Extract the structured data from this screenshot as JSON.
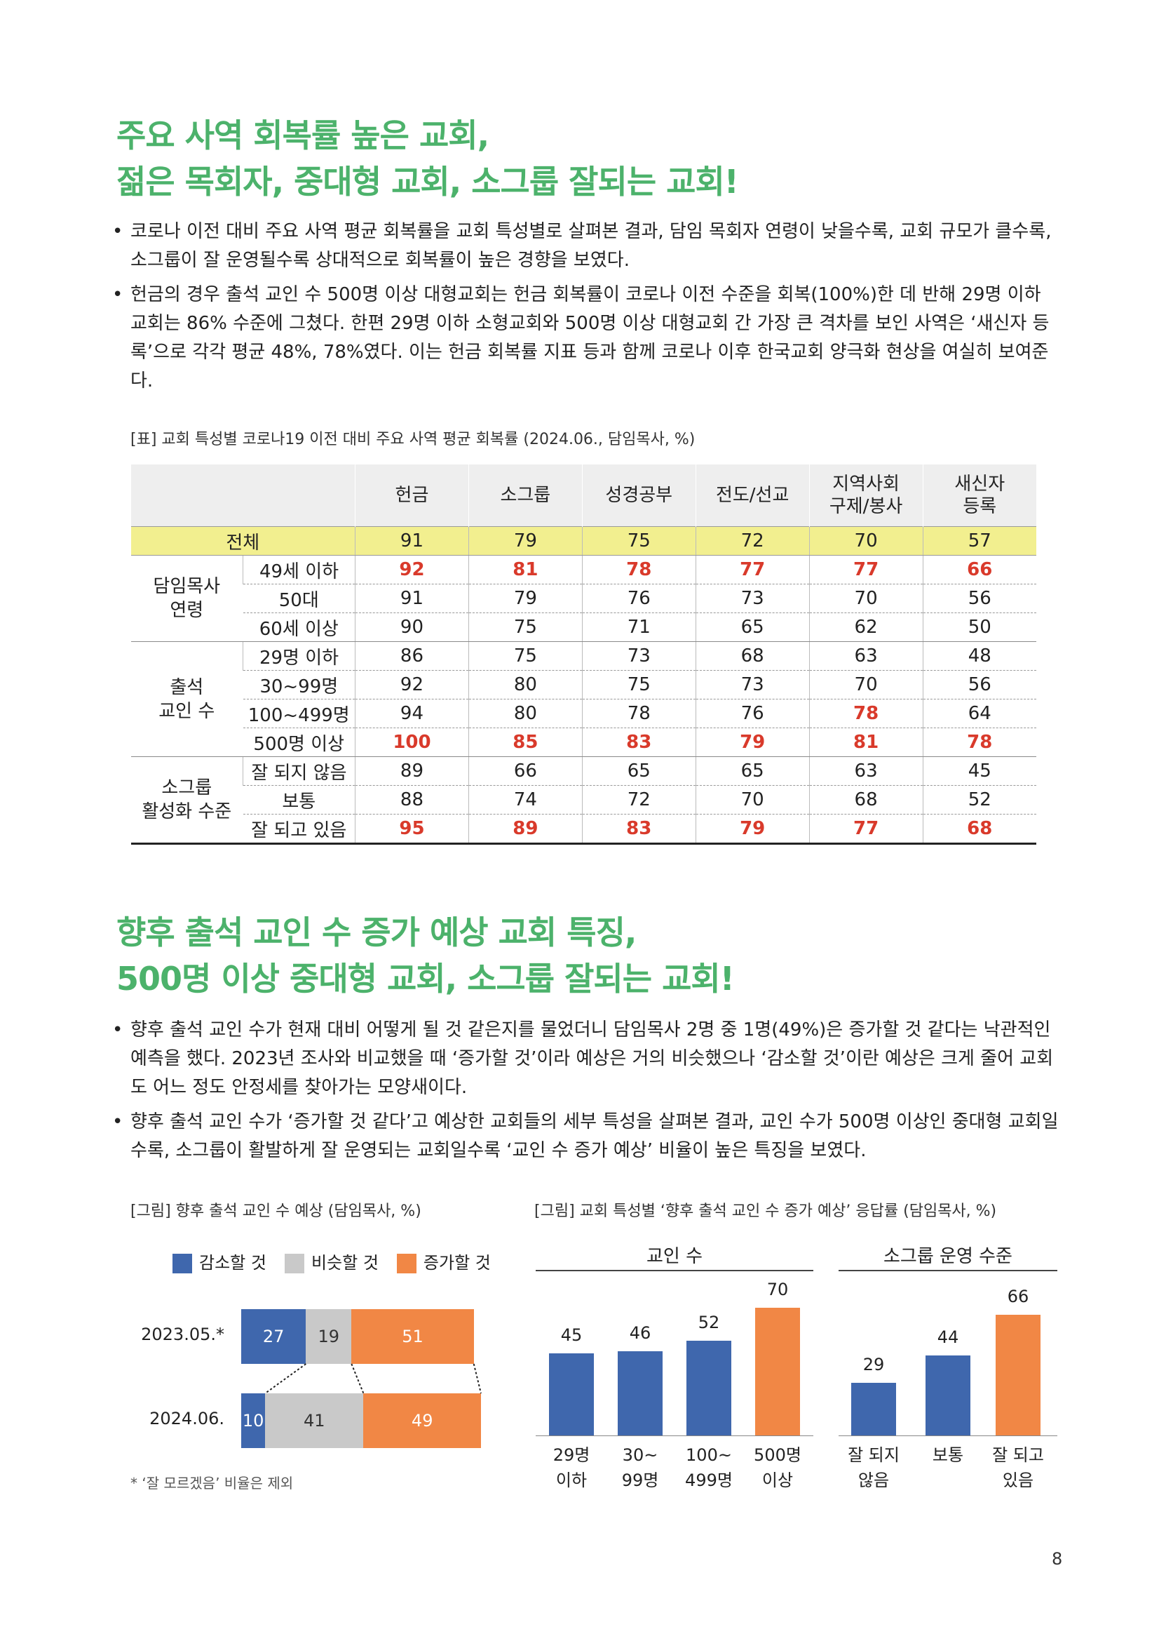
{
  "section1": {
    "title_line1": "주요 사역 회복률 높은 교회,",
    "title_line2": "젊은 목회자, 중대형 교회, 소그룹 잘되는 교회!",
    "bullets": [
      "코로나 이전 대비 주요 사역 평균 회복률을 교회 특성별로 살펴본 결과, 담임 목회자 연령이 낮을수록, 교회 규모가 클수록, 소그룹이 잘 운영될수록 상대적으로 회복률이 높은 경향을 보였다.",
      "헌금의 경우 출석 교인 수 500명 이상 대형교회는 헌금 회복률이 코로나 이전 수준을 회복(100%)한 데 반해 29명 이하 교회는 86% 수준에 그쳤다. 한편 29명 이하 소형교회와 500명 이상 대형교회 간 가장 큰 격차를 보인 사역은 ‘새신자 등록’으로 각각 평균 48%, 78%였다. 이는 헌금 회복률 지표 등과 함께 코로나 이후 한국교회 양극화 현상을 여실히 보여준다."
    ],
    "table_caption": "[표] 교회 특성별 코로나19 이전 대비 주요 사역 평균 회복률 (2024.06., 담임목사, %)",
    "table": {
      "headers": [
        "헌금",
        "소그룹",
        "성경공부",
        "전도/선교",
        "지역사회\n구제/봉사",
        "새신자\n등록"
      ],
      "total": {
        "label": "전체",
        "values": [
          "91",
          "79",
          "75",
          "72",
          "70",
          "57"
        ]
      },
      "groups": [
        {
          "label": "담임목사\n연령",
          "rows": [
            {
              "label": "49세 이하",
              "values": [
                "92",
                "81",
                "78",
                "77",
                "77",
                "66"
              ],
              "highlight": [
                true,
                true,
                true,
                true,
                true,
                true
              ]
            },
            {
              "label": "50대",
              "values": [
                "91",
                "79",
                "76",
                "73",
                "70",
                "56"
              ],
              "highlight": [
                false,
                false,
                false,
                false,
                false,
                false
              ]
            },
            {
              "label": "60세 이상",
              "values": [
                "90",
                "75",
                "71",
                "65",
                "62",
                "50"
              ],
              "highlight": [
                false,
                false,
                false,
                false,
                false,
                false
              ]
            }
          ]
        },
        {
          "label": "출석\n교인 수",
          "rows": [
            {
              "label": "29명 이하",
              "values": [
                "86",
                "75",
                "73",
                "68",
                "63",
                "48"
              ],
              "highlight": [
                false,
                false,
                false,
                false,
                false,
                false
              ]
            },
            {
              "label": "30~99명",
              "values": [
                "92",
                "80",
                "75",
                "73",
                "70",
                "56"
              ],
              "highlight": [
                false,
                false,
                false,
                false,
                false,
                false
              ]
            },
            {
              "label": "100~499명",
              "values": [
                "94",
                "80",
                "78",
                "76",
                "78",
                "64"
              ],
              "highlight": [
                false,
                false,
                false,
                false,
                true,
                false
              ]
            },
            {
              "label": "500명 이상",
              "values": [
                "100",
                "85",
                "83",
                "79",
                "81",
                "78"
              ],
              "highlight": [
                true,
                true,
                true,
                true,
                true,
                true
              ]
            }
          ]
        },
        {
          "label": "소그룹\n활성화 수준",
          "rows": [
            {
              "label": "잘 되지 않음",
              "values": [
                "89",
                "66",
                "65",
                "65",
                "63",
                "45"
              ],
              "highlight": [
                false,
                false,
                false,
                false,
                false,
                false
              ]
            },
            {
              "label": "보통",
              "values": [
                "88",
                "74",
                "72",
                "70",
                "68",
                "52"
              ],
              "highlight": [
                false,
                false,
                false,
                false,
                false,
                false
              ]
            },
            {
              "label": "잘 되고 있음",
              "values": [
                "95",
                "89",
                "83",
                "79",
                "77",
                "68"
              ],
              "highlight": [
                true,
                true,
                true,
                true,
                true,
                true
              ]
            }
          ]
        }
      ]
    }
  },
  "section2": {
    "title_line1": "향후 출석 교인 수 증가 예상 교회 특징,",
    "title_line2": "500명 이상 중대형 교회, 소그룹 잘되는 교회!",
    "bullets": [
      "향후 출석 교인 수가 현재 대비 어떻게 될 것 같은지를 물었더니 담임목사 2명 중 1명(49%)은 증가할 것 같다는 낙관적인 예측을 했다. 2023년 조사와 비교했을 때 ‘증가할 것’이라 예상은 거의 비슷했으나 ‘감소할 것’이란 예상은 크게 줄어 교회도 어느 정도 안정세를 찾아가는 모양새이다.",
      "향후 출석 교인 수가 ‘증가할 것 같다’고 예상한 교회들의 세부 특성을 살펴본 결과, 교인 수가 500명 이상인 중대형 교회일수록, 소그룹이 활발하게 잘 운영되는 교회일수록 ‘교인 수 증가 예상’ 비율이 높은 특징을 보였다."
    ],
    "left_caption": "[그림] 향후 출석 교인 수 예상 (담임목사, %)",
    "right_caption": "[그림] 교회 특성별 ‘향후 출석 교인 수 증가 예상’ 응답률 (담임목사, %)",
    "footnote": "* ‘잘 모르겠음’ 비율은 제외"
  },
  "chart_data": [
    {
      "type": "bar",
      "orientation": "horizontal-stacked",
      "categories": [
        "2023.05.*",
        "2024.06."
      ],
      "series": [
        {
          "name": "감소할 것",
          "values": [
            27,
            10
          ],
          "color": "#3f67ad"
        },
        {
          "name": "비슷할 것",
          "values": [
            19,
            41
          ],
          "color": "#c9c9c9"
        },
        {
          "name": "증가할 것",
          "values": [
            51,
            49
          ],
          "color": "#f18745"
        }
      ],
      "legend": "top"
    },
    {
      "type": "bar",
      "group_title": "교인 수",
      "categories": [
        "29명\n이하",
        "30~\n99명",
        "100~\n499명",
        "500명\n이상"
      ],
      "values": [
        45,
        46,
        52,
        70
      ],
      "colors": [
        "#3f67ad",
        "#3f67ad",
        "#3f67ad",
        "#f18745"
      ],
      "ylim": [
        0,
        100
      ]
    },
    {
      "type": "bar",
      "group_title": "소그룹 운영 수준",
      "categories": [
        "잘 되지\n않음",
        "보통",
        "잘 되고\n있음"
      ],
      "values": [
        29,
        44,
        66
      ],
      "colors": [
        "#3f67ad",
        "#3f67ad",
        "#f18745"
      ],
      "ylim": [
        0,
        100
      ]
    }
  ],
  "page_number": "8"
}
